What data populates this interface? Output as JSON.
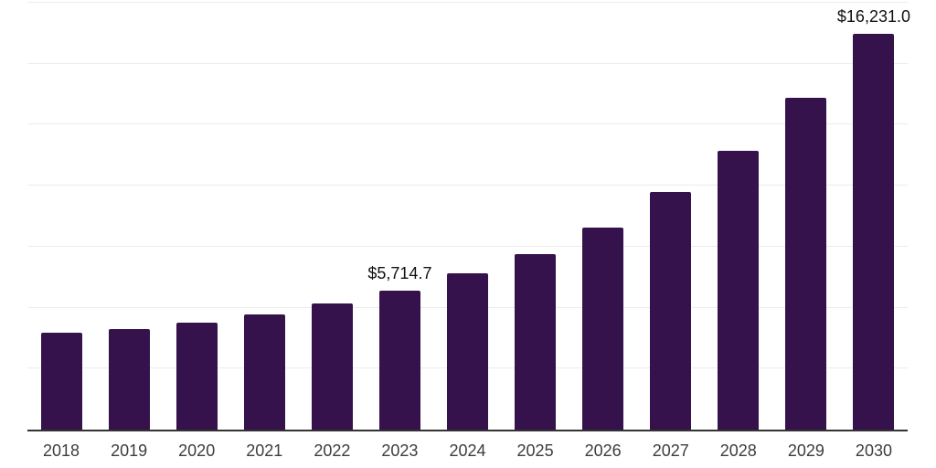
{
  "chart_data": {
    "type": "bar",
    "title": "",
    "xlabel": "",
    "ylabel": "",
    "categories": [
      "2018",
      "2019",
      "2020",
      "2021",
      "2022",
      "2023",
      "2024",
      "2025",
      "2026",
      "2027",
      "2028",
      "2029",
      "2030"
    ],
    "values": [
      3970,
      4140,
      4380,
      4715,
      5160,
      5714.7,
      6390,
      7210,
      8290,
      9730,
      11420,
      13585,
      16231
    ],
    "data_labels": [
      {
        "category": "2023",
        "text": "$5,714.7"
      },
      {
        "category": "2030",
        "text": "$16,231.0"
      }
    ],
    "ylim": [
      0,
      17500
    ],
    "gridline_step": 2500,
    "grid": true,
    "legend": false,
    "y_tick_labels_visible": false,
    "colors": {
      "bar": "#35124B",
      "axis_line": "#333333",
      "gridline": "#ececec",
      "tick_label": "#3d3d3d",
      "data_label": "#111111",
      "background": "#ffffff"
    }
  }
}
